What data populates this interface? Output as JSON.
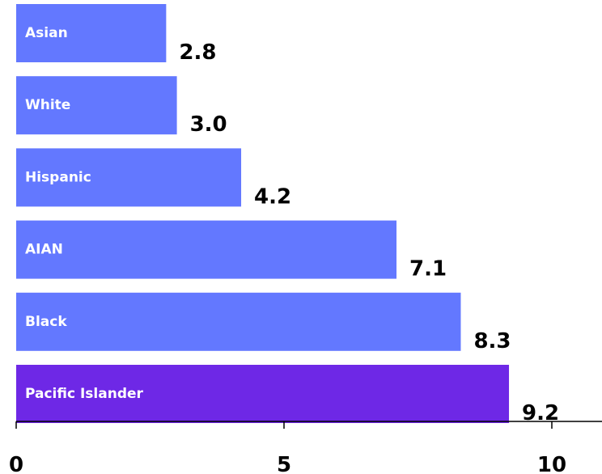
{
  "chart_data": {
    "type": "bar",
    "orientation": "horizontal",
    "categories": [
      "Asian",
      "White",
      "Hispanic",
      "AIAN",
      "Black",
      "Pacific Islander"
    ],
    "values": [
      2.8,
      3.0,
      4.2,
      7.1,
      8.3,
      9.2
    ],
    "value_labels": [
      "2.8",
      "3.0",
      "4.2",
      "7.1",
      "8.3",
      "9.2"
    ],
    "xlim": [
      0,
      11
    ],
    "xticks": [
      0,
      5,
      10
    ],
    "xtick_labels": [
      "0",
      "5",
      "10"
    ],
    "title": "",
    "xlabel": "",
    "ylabel": "",
    "grid": false,
    "colors": {
      "default_bar": "#6378ff",
      "highlight_bar": "#6e28e6",
      "axis": "#000000"
    },
    "highlight_category": "Pacific Islander"
  }
}
